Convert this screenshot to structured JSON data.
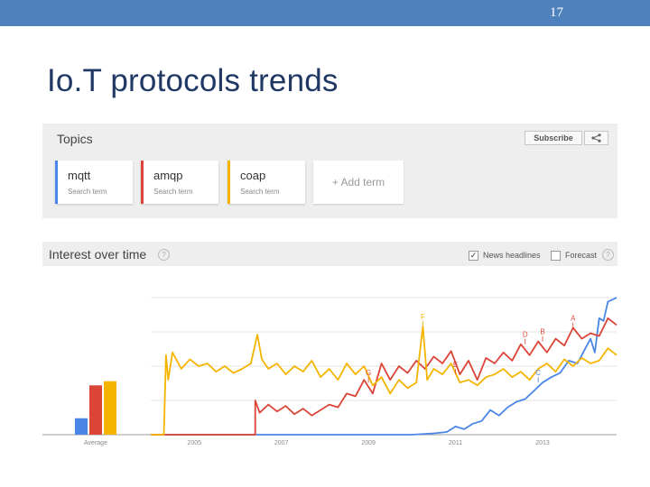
{
  "slide": {
    "number": "17",
    "title": "Io.T protocols trends"
  },
  "topics": {
    "title": "Topics",
    "subscribe_label": "Subscribe",
    "share_icon": "share-icon",
    "add_term_label": "+ Add term",
    "terms": [
      {
        "name": "mqtt",
        "sub": "Search term",
        "color": "#4a86e8"
      },
      {
        "name": "amqp",
        "sub": "Search term",
        "color": "#db4437"
      },
      {
        "name": "coap",
        "sub": "Search term",
        "color": "#f4b400"
      }
    ]
  },
  "interest": {
    "title": "Interest over time",
    "help_icon": "?",
    "news_checked": "✓",
    "news_label": "News headlines",
    "forecast_label": "Forecast"
  },
  "chart_data": {
    "type": "line",
    "x_range": [
      2004.0,
      2014.7
    ],
    "ylim": [
      0,
      100
    ],
    "grid": true,
    "xticks": [
      "2005",
      "2007",
      "2009",
      "2011",
      "2013"
    ],
    "xtick_values": [
      2005,
      2007,
      2009,
      2011,
      2013
    ],
    "average": {
      "label": "Average",
      "values": [
        12,
        36,
        39
      ]
    },
    "series": [
      {
        "name": "mqtt",
        "color": "#4a86e8",
        "points": [
          [
            2004.0,
            0
          ],
          [
            2010.0,
            0
          ],
          [
            2010.5,
            1
          ],
          [
            2010.8,
            2
          ],
          [
            2011.0,
            6
          ],
          [
            2011.2,
            4
          ],
          [
            2011.4,
            8
          ],
          [
            2011.6,
            10
          ],
          [
            2011.8,
            18
          ],
          [
            2012.0,
            14
          ],
          [
            2012.2,
            20
          ],
          [
            2012.4,
            24
          ],
          [
            2012.6,
            26
          ],
          [
            2012.8,
            32
          ],
          [
            2013.0,
            38
          ],
          [
            2013.2,
            42
          ],
          [
            2013.4,
            45
          ],
          [
            2013.6,
            54
          ],
          [
            2013.8,
            52
          ],
          [
            2013.95,
            61
          ],
          [
            2014.1,
            70
          ],
          [
            2014.2,
            60
          ],
          [
            2014.3,
            85
          ],
          [
            2014.4,
            83
          ],
          [
            2014.5,
            97
          ],
          [
            2014.7,
            100
          ]
        ]
      },
      {
        "name": "amqp",
        "color": "#db4437",
        "points": [
          [
            2004.0,
            0
          ],
          [
            2006.4,
            0
          ],
          [
            2006.4,
            25
          ],
          [
            2006.5,
            16
          ],
          [
            2006.7,
            22
          ],
          [
            2006.9,
            17
          ],
          [
            2007.1,
            21
          ],
          [
            2007.3,
            15
          ],
          [
            2007.5,
            19
          ],
          [
            2007.7,
            14
          ],
          [
            2007.9,
            18
          ],
          [
            2008.1,
            22
          ],
          [
            2008.3,
            20
          ],
          [
            2008.5,
            30
          ],
          [
            2008.7,
            28
          ],
          [
            2008.9,
            40
          ],
          [
            2009.1,
            30
          ],
          [
            2009.3,
            52
          ],
          [
            2009.5,
            40
          ],
          [
            2009.7,
            50
          ],
          [
            2009.9,
            45
          ],
          [
            2010.1,
            54
          ],
          [
            2010.3,
            48
          ],
          [
            2010.5,
            57
          ],
          [
            2010.7,
            52
          ],
          [
            2010.9,
            61
          ],
          [
            2011.1,
            44
          ],
          [
            2011.3,
            54
          ],
          [
            2011.5,
            40
          ],
          [
            2011.7,
            56
          ],
          [
            2011.9,
            52
          ],
          [
            2012.1,
            60
          ],
          [
            2012.3,
            54
          ],
          [
            2012.5,
            66
          ],
          [
            2012.7,
            58
          ],
          [
            2012.9,
            68
          ],
          [
            2013.1,
            60
          ],
          [
            2013.3,
            70
          ],
          [
            2013.5,
            65
          ],
          [
            2013.7,
            78
          ],
          [
            2013.9,
            70
          ],
          [
            2014.1,
            74
          ],
          [
            2014.3,
            72
          ],
          [
            2014.5,
            85
          ],
          [
            2014.7,
            80
          ]
        ]
      },
      {
        "name": "coap",
        "color": "#f4b400",
        "points": [
          [
            2004.0,
            0
          ],
          [
            2004.3,
            0
          ],
          [
            2004.35,
            58
          ],
          [
            2004.4,
            40
          ],
          [
            2004.5,
            60
          ],
          [
            2004.7,
            48
          ],
          [
            2004.9,
            55
          ],
          [
            2005.1,
            50
          ],
          [
            2005.3,
            52
          ],
          [
            2005.5,
            46
          ],
          [
            2005.7,
            50
          ],
          [
            2005.9,
            45
          ],
          [
            2006.1,
            48
          ],
          [
            2006.3,
            52
          ],
          [
            2006.45,
            73
          ],
          [
            2006.55,
            55
          ],
          [
            2006.7,
            48
          ],
          [
            2006.9,
            52
          ],
          [
            2007.1,
            44
          ],
          [
            2007.3,
            50
          ],
          [
            2007.5,
            46
          ],
          [
            2007.7,
            54
          ],
          [
            2007.9,
            42
          ],
          [
            2008.1,
            48
          ],
          [
            2008.3,
            40
          ],
          [
            2008.5,
            52
          ],
          [
            2008.7,
            44
          ],
          [
            2008.9,
            50
          ],
          [
            2009.1,
            36
          ],
          [
            2009.3,
            42
          ],
          [
            2009.5,
            30
          ],
          [
            2009.7,
            40
          ],
          [
            2009.9,
            34
          ],
          [
            2010.1,
            38
          ],
          [
            2010.25,
            79
          ],
          [
            2010.35,
            40
          ],
          [
            2010.5,
            48
          ],
          [
            2010.7,
            44
          ],
          [
            2010.9,
            52
          ],
          [
            2011.1,
            38
          ],
          [
            2011.3,
            40
          ],
          [
            2011.5,
            36
          ],
          [
            2011.7,
            42
          ],
          [
            2011.9,
            44
          ],
          [
            2012.1,
            48
          ],
          [
            2012.3,
            42
          ],
          [
            2012.5,
            46
          ],
          [
            2012.7,
            40
          ],
          [
            2012.9,
            48
          ],
          [
            2013.1,
            52
          ],
          [
            2013.3,
            46
          ],
          [
            2013.5,
            55
          ],
          [
            2013.7,
            50
          ],
          [
            2013.9,
            56
          ],
          [
            2014.1,
            52
          ],
          [
            2014.3,
            54
          ],
          [
            2014.5,
            63
          ],
          [
            2014.7,
            58
          ]
        ]
      }
    ],
    "annotations": [
      {
        "label": "A",
        "x": 2013.7,
        "y": 78,
        "series": "amqp"
      },
      {
        "label": "B",
        "x": 2013.0,
        "y": 68,
        "series": "amqp"
      },
      {
        "label": "C",
        "x": 2012.9,
        "y": 38,
        "series": "mqtt"
      },
      {
        "label": "D",
        "x": 2012.6,
        "y": 66,
        "series": "amqp"
      },
      {
        "label": "E",
        "x": 2011.0,
        "y": 44,
        "series": "amqp"
      },
      {
        "label": "F",
        "x": 2010.25,
        "y": 79,
        "series": "coap"
      },
      {
        "label": "G",
        "x": 2009.0,
        "y": 38,
        "series": "amqp"
      }
    ]
  }
}
